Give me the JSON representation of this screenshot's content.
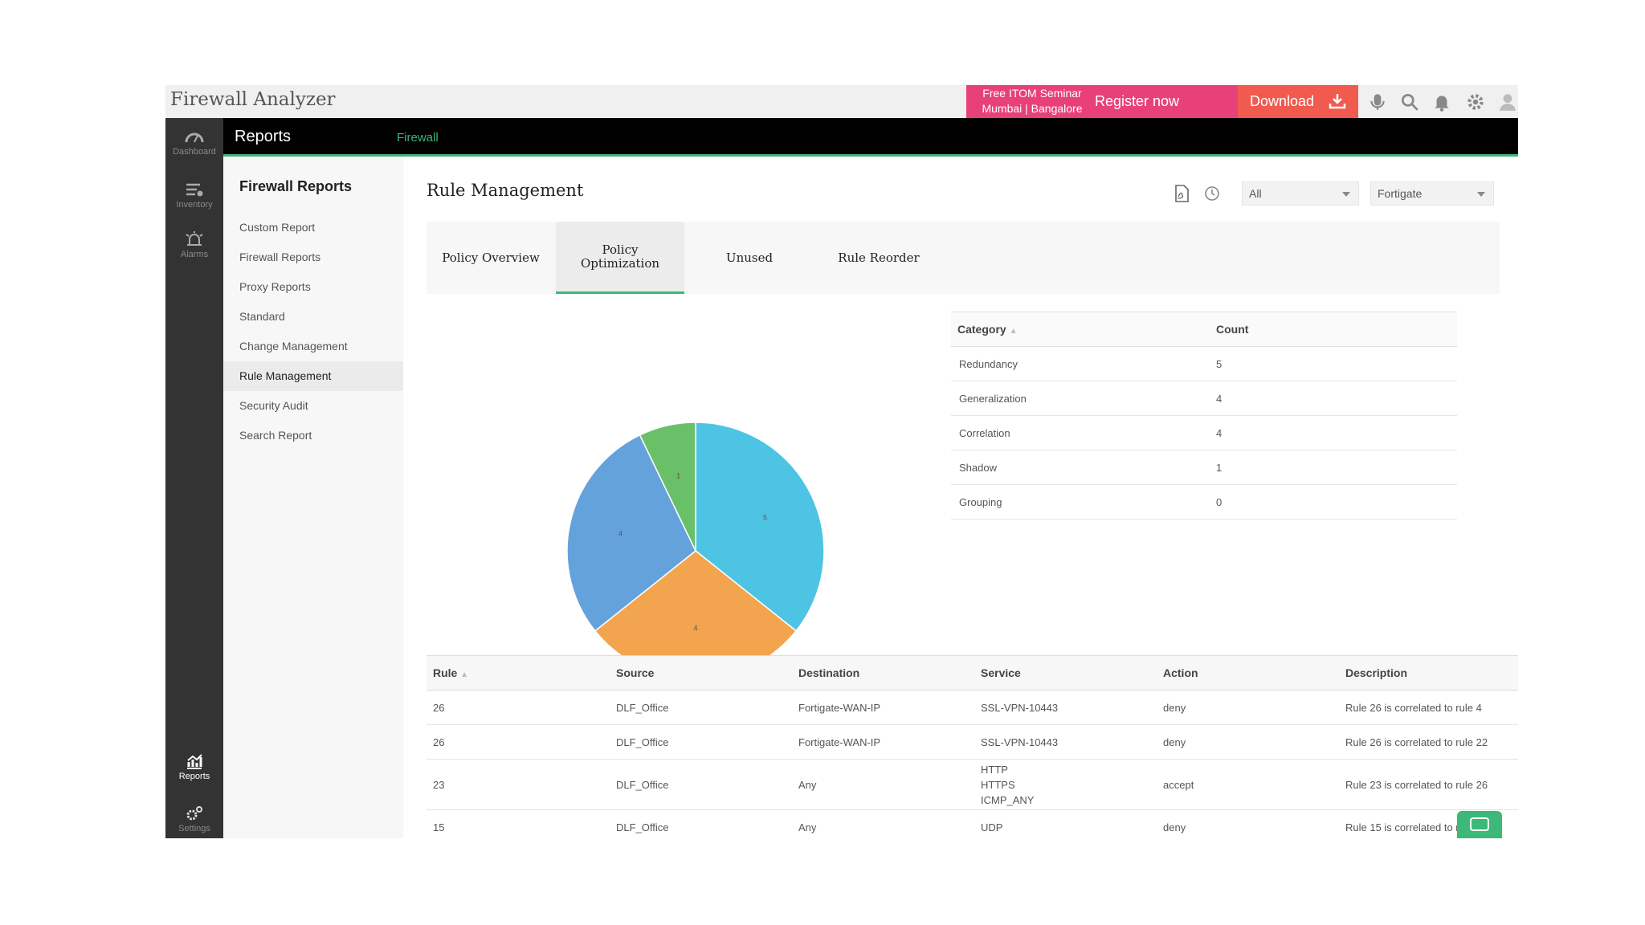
{
  "app": {
    "title": "Firewall Analyzer"
  },
  "promo": {
    "line1": "Free ITOM Seminar",
    "line2": "Mumbai | Bangalore",
    "register_label": "Register now"
  },
  "download_label": "Download",
  "rail": [
    {
      "label": "Dashboard",
      "icon": "dashboard-icon"
    },
    {
      "label": "Inventory",
      "icon": "inventory-icon"
    },
    {
      "label": "Alarms",
      "icon": "alarm-icon"
    },
    {
      "label": "Reports",
      "icon": "reports-icon"
    },
    {
      "label": "Settings",
      "icon": "settings-icon"
    }
  ],
  "header": {
    "title": "Reports",
    "breadcrumb": "Firewall"
  },
  "subnav": {
    "title": "Firewall Reports",
    "items": [
      {
        "label": "Custom Report"
      },
      {
        "label": "Firewall Reports"
      },
      {
        "label": "Proxy Reports"
      },
      {
        "label": "Standard"
      },
      {
        "label": "Change Management"
      },
      {
        "label": "Rule Management"
      },
      {
        "label": "Security Audit"
      },
      {
        "label": "Search Report"
      }
    ],
    "active_index": 5
  },
  "main": {
    "title": "Rule Management",
    "filter1": "All",
    "filter2": "Fortigate",
    "tabs": [
      {
        "label": "Policy Overview"
      },
      {
        "label": "Policy\nOptimization"
      },
      {
        "label": "Unused"
      },
      {
        "label": "Rule Reorder"
      }
    ],
    "active_tab": 1
  },
  "chart_data": {
    "type": "pie",
    "categories": [
      "Redundancy",
      "Generalization",
      "Correlation",
      "Shadow",
      "Grouping"
    ],
    "values": [
      5,
      4,
      4,
      1,
      0
    ],
    "colors": [
      "#4ec4e4",
      "#f2a44e",
      "#64a2dc",
      "#6abf69",
      "#999999"
    ]
  },
  "category_table": {
    "headers": [
      "Category",
      "Count"
    ],
    "rows": [
      [
        "Redundancy",
        "5"
      ],
      [
        "Generalization",
        "4"
      ],
      [
        "Correlation",
        "4"
      ],
      [
        "Shadow",
        "1"
      ],
      [
        "Grouping",
        "0"
      ]
    ]
  },
  "rule_table": {
    "headers": [
      "Rule",
      "Source",
      "Destination",
      "Service",
      "Action",
      "Description"
    ],
    "rows": [
      {
        "rule": "26",
        "source": "DLF_Office",
        "destination": "Fortigate-WAN-IP",
        "service": [
          "SSL-VPN-10443"
        ],
        "action": "deny",
        "description": "Rule 26 is correlated to rule 4"
      },
      {
        "rule": "26",
        "source": "DLF_Office",
        "destination": "Fortigate-WAN-IP",
        "service": [
          "SSL-VPN-10443"
        ],
        "action": "deny",
        "description": "Rule 26 is correlated to rule 22"
      },
      {
        "rule": "23",
        "source": "DLF_Office",
        "destination": "Any",
        "service": [
          "HTTP",
          "HTTPS",
          "ICMP_ANY"
        ],
        "action": "accept",
        "description": "Rule 23 is correlated to rule 26"
      },
      {
        "rule": "15",
        "source": "DLF_Office",
        "destination": "Any",
        "service": [
          "UDP"
        ],
        "action": "deny",
        "description": "Rule 15 is correlated to rule"
      }
    ]
  }
}
